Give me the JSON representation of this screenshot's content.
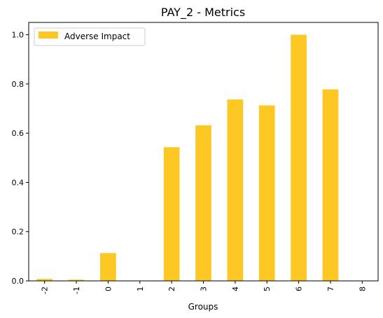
{
  "chart_data": {
    "type": "bar",
    "title": "PAY_2 - Metrics",
    "xlabel": "Groups",
    "ylabel": "",
    "categories": [
      "-2",
      "-1",
      "0",
      "1",
      "2",
      "3",
      "4",
      "5",
      "6",
      "7",
      "8"
    ],
    "series": [
      {
        "name": "Adverse Impact",
        "values": [
          0.008,
          0.005,
          0.113,
          0.0,
          0.543,
          0.632,
          0.737,
          0.713,
          1.0,
          0.778,
          0.0
        ]
      }
    ],
    "ylim": [
      0,
      1.05
    ],
    "yticks": [
      "0.0",
      "0.2",
      "0.4",
      "0.6",
      "0.8",
      "1.0"
    ],
    "grid": false,
    "legend_position": "top-left",
    "bar_color": "#fdc724"
  }
}
